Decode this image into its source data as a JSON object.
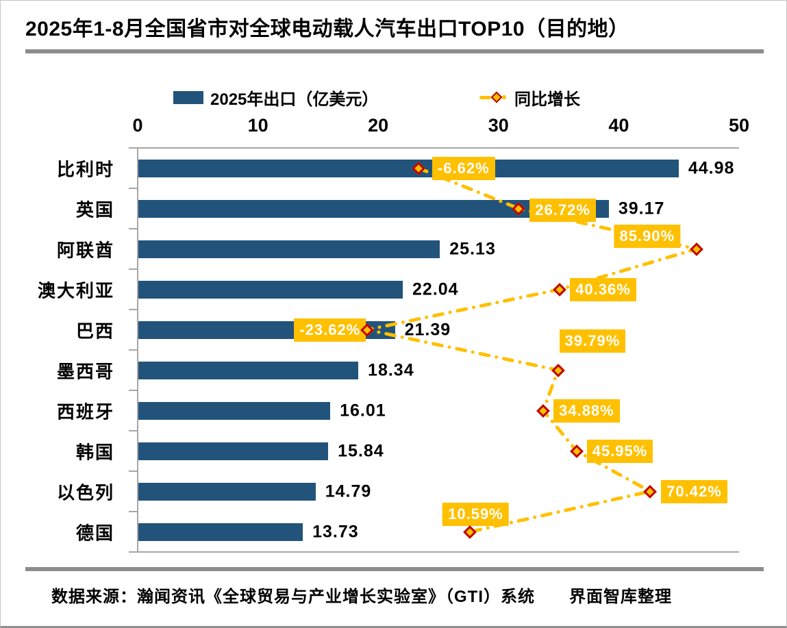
{
  "page": {
    "title": "2025年1-8月全国省市对全球电动载人汽车出口TOP10（目的地）",
    "source": "数据来源：瀚闻资讯《全球贸易与产业增长实验室》（GTI）系统　　界面智库整理"
  },
  "legend": [
    {
      "label": "2025年出口（亿美元）",
      "marker": "bar-swatch"
    },
    {
      "label": "同比增长",
      "marker": "dash-dot-diamond"
    }
  ],
  "colors": {
    "bar": "#22537B",
    "accent_yellow": "#FFC000",
    "marker_border_red": "#C00000",
    "axis_gray": "#A6A6A6",
    "divider_gray": "#8C8C8C",
    "pct_label_text": "#FFFFFF",
    "text_black": "#000000"
  },
  "chart_data": {
    "type": "bar",
    "orientation": "horizontal",
    "title": "2025年1-8月全国省市对全球电动载人汽车出口TOP10（目的地）",
    "categories": [
      "比利时",
      "英国",
      "阿联酋",
      "澳大利亚",
      "巴西",
      "墨西哥",
      "西班牙",
      "韩国",
      "以色列",
      "德国"
    ],
    "series": [
      {
        "name": "2025年出口（亿美元）",
        "type": "bar",
        "values": [
          44.98,
          39.17,
          25.13,
          22.04,
          21.39,
          18.34,
          16.01,
          15.84,
          14.79,
          13.73
        ],
        "value_labels": [
          "44.98",
          "39.17",
          "25.13",
          "22.04",
          "21.39",
          "18.34",
          "16.01",
          "15.84",
          "14.79",
          "13.73"
        ]
      },
      {
        "name": "同比增长",
        "type": "line",
        "unit": "%",
        "values": [
          -6.62,
          26.72,
          85.9,
          40.36,
          -23.62,
          39.79,
          34.88,
          45.95,
          70.42,
          10.59
        ],
        "value_labels": [
          "-6.62%",
          "26.72%",
          "85.90%",
          "40.36%",
          "-23.62%",
          "39.79%",
          "34.88%",
          "45.95%",
          "70.42%",
          "10.59%"
        ]
      }
    ],
    "x_axis": {
      "min": 0,
      "max": 50,
      "ticks": [
        0,
        10,
        20,
        30,
        40,
        50
      ],
      "position": "top"
    },
    "secondary_x_axis": {
      "min": -100,
      "max": 100,
      "visible": false
    },
    "grid": false,
    "legend_position": "top"
  }
}
